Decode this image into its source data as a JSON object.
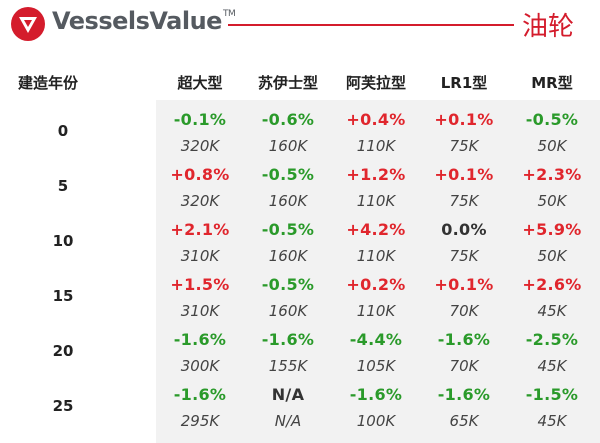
{
  "header": {
    "brand": "VesselsValue",
    "trademark": "TM",
    "section_title": "油轮",
    "brand_color": "#d41c2c"
  },
  "table": {
    "year_header": "建造年份",
    "columns": [
      "超大型",
      "苏伊士型",
      "阿芙拉型",
      "LR1型",
      "MR型"
    ],
    "rows": [
      {
        "year": "0",
        "changes": [
          "-0.1%",
          "-0.6%",
          "+0.4%",
          "+0.1%",
          "-0.5%"
        ],
        "values": [
          "320K",
          "160K",
          "110K",
          "75K",
          "50K"
        ]
      },
      {
        "year": "5",
        "changes": [
          "+0.8%",
          "-0.5%",
          "+1.2%",
          "+0.1%",
          "+2.3%"
        ],
        "values": [
          "320K",
          "160K",
          "110K",
          "75K",
          "50K"
        ]
      },
      {
        "year": "10",
        "changes": [
          "+2.1%",
          "-0.5%",
          "+4.2%",
          "0.0%",
          "+5.9%"
        ],
        "values": [
          "310K",
          "160K",
          "110K",
          "75K",
          "50K"
        ]
      },
      {
        "year": "15",
        "changes": [
          "+1.5%",
          "-0.5%",
          "+0.2%",
          "+0.1%",
          "+2.6%"
        ],
        "values": [
          "310K",
          "160K",
          "110K",
          "70K",
          "45K"
        ]
      },
      {
        "year": "20",
        "changes": [
          "-1.6%",
          "-1.6%",
          "-4.4%",
          "-1.6%",
          "-2.5%"
        ],
        "values": [
          "300K",
          "155K",
          "105K",
          "70K",
          "45K"
        ]
      },
      {
        "year": "25",
        "changes": [
          "-1.6%",
          "N/A",
          "-1.6%",
          "-1.6%",
          "-1.5%"
        ],
        "values": [
          "295K",
          "N/A",
          "100K",
          "65K",
          "45K"
        ]
      }
    ],
    "colors": {
      "positive": "#e0262d",
      "negative": "#2a9a2a",
      "neutral": "#333333"
    }
  }
}
